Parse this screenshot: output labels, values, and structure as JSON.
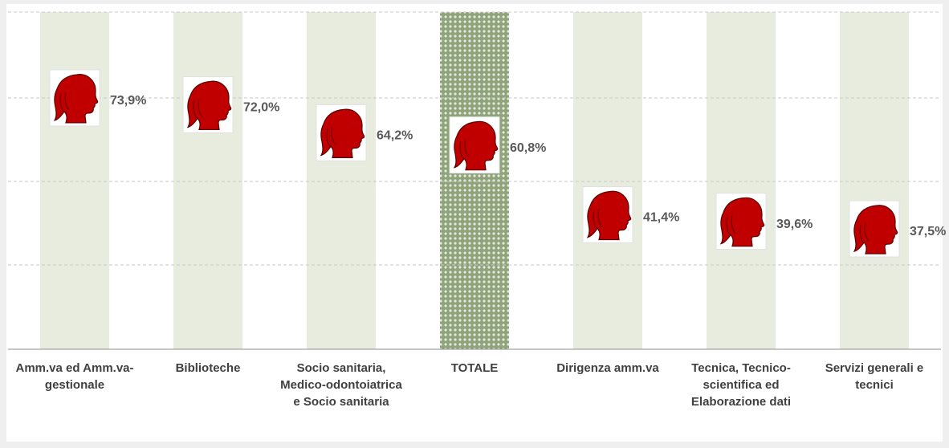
{
  "chart_data": {
    "type": "pictograph",
    "categories": [
      "Amm.va ed Amm.va-gestionale",
      "Biblioteche",
      "Socio sanitaria, Medico-odontoiatrica e Socio sanitaria",
      "TOTALE",
      "Dirigenza amm.va",
      "Tecnica, Tecnico-scientifica ed Elaborazione dati",
      "Servizi generali e tecnici"
    ],
    "values": [
      73.9,
      72.0,
      64.2,
      60.8,
      41.4,
      39.6,
      37.5
    ],
    "value_labels": [
      "73,9%",
      "72,0%",
      "64,2%",
      "60,8%",
      "41,4%",
      "39,6%",
      "37,5%"
    ],
    "column_colors": [
      "#e8ecdf",
      "#e8ecdf",
      "#e8ecdf",
      "#8fa37a",
      "#e8ecdf",
      "#e8ecdf",
      "#e8ecdf"
    ],
    "icon_color": "#c00000",
    "ylim": [
      0,
      100
    ],
    "grid": true
  }
}
